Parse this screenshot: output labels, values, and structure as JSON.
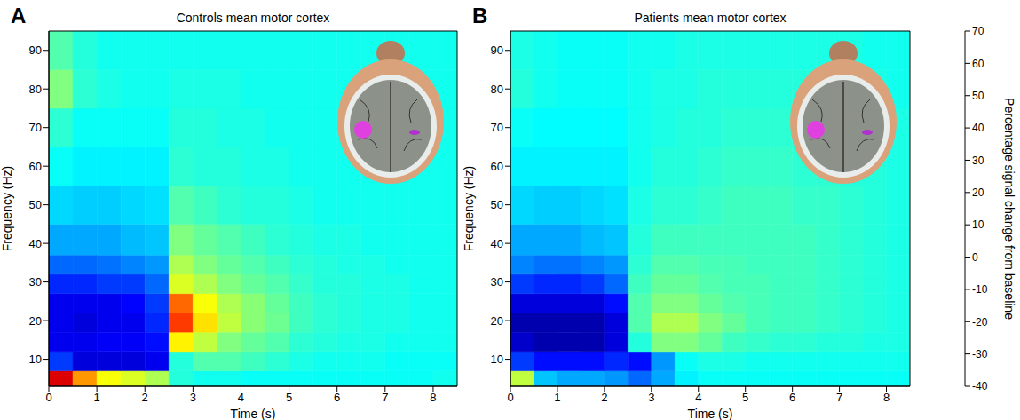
{
  "chart_data": [
    {
      "type": "heatmap",
      "panel_label": "A",
      "title": "Controls mean motor cortex",
      "x_label": "Time (s)",
      "y_label": "Frequency (Hz)",
      "xlim": [
        0,
        8.5
      ],
      "xticks": [
        0,
        1,
        2,
        3,
        4,
        5,
        6,
        7,
        8
      ],
      "ylim": [
        3,
        95
      ],
      "yticks": [
        10,
        20,
        30,
        40,
        50,
        60,
        70,
        80,
        90
      ],
      "x_bins": [
        0,
        0.5,
        1,
        1.5,
        2,
        2.5,
        3,
        3.5,
        4,
        4.5,
        5,
        5.5,
        6,
        6.5,
        7,
        7.5,
        8,
        8.5
      ],
      "y_bins": [
        3,
        7,
        12,
        17,
        22,
        27,
        32,
        37,
        45,
        55,
        65,
        75,
        85,
        95
      ],
      "cells": [
        [
          60,
          40,
          28,
          25,
          20,
          5,
          3,
          3,
          2,
          2,
          2,
          2,
          2,
          2,
          2,
          2,
          3
        ],
        [
          -20,
          -30,
          -30,
          -30,
          -28,
          5,
          10,
          10,
          8,
          6,
          4,
          3,
          3,
          3,
          2,
          2,
          2
        ],
        [
          -28,
          -28,
          -27,
          -27,
          -25,
          30,
          22,
          15,
          12,
          10,
          6,
          5,
          4,
          4,
          3,
          3,
          3
        ],
        [
          -28,
          -30,
          -28,
          -28,
          -22,
          50,
          32,
          22,
          16,
          13,
          8,
          6,
          5,
          4,
          4,
          3,
          3
        ],
        [
          -28,
          -28,
          -28,
          -26,
          -20,
          45,
          28,
          20,
          16,
          12,
          8,
          6,
          5,
          4,
          4,
          3,
          3
        ],
        [
          -22,
          -22,
          -20,
          -20,
          -15,
          25,
          20,
          15,
          12,
          10,
          7,
          5,
          5,
          4,
          4,
          3,
          3
        ],
        [
          -15,
          -15,
          -14,
          -12,
          -10,
          20,
          15,
          12,
          10,
          8,
          6,
          5,
          4,
          4,
          3,
          3,
          3
        ],
        [
          -8,
          -8,
          -8,
          -6,
          -5,
          15,
          12,
          10,
          8,
          6,
          5,
          4,
          4,
          3,
          3,
          3,
          3
        ],
        [
          -3,
          -4,
          -4,
          -3,
          -2,
          10,
          8,
          6,
          5,
          5,
          4,
          3,
          3,
          3,
          3,
          3,
          3
        ],
        [
          2,
          0,
          0,
          0,
          0,
          6,
          5,
          5,
          4,
          4,
          3,
          3,
          3,
          3,
          3,
          3,
          3
        ],
        [
          6,
          2,
          2,
          2,
          2,
          5,
          5,
          4,
          4,
          3,
          3,
          3,
          3,
          3,
          3,
          3,
          3
        ],
        [
          15,
          6,
          4,
          3,
          3,
          4,
          4,
          4,
          3,
          3,
          3,
          3,
          3,
          3,
          3,
          3,
          3
        ],
        [
          10,
          5,
          3,
          3,
          3,
          3,
          3,
          3,
          3,
          3,
          3,
          3,
          3,
          3,
          3,
          3,
          3
        ]
      ]
    },
    {
      "type": "heatmap",
      "panel_label": "B",
      "title": "Patients mean motor cortex",
      "x_label": "Time (s)",
      "y_label": "Frequency (Hz)",
      "xlim": [
        0,
        8.5
      ],
      "xticks": [
        0,
        1,
        2,
        3,
        4,
        5,
        6,
        7,
        8
      ],
      "ylim": [
        3,
        95
      ],
      "yticks": [
        10,
        20,
        30,
        40,
        50,
        60,
        70,
        80,
        90
      ],
      "x_bins": [
        0,
        0.5,
        1,
        1.5,
        2,
        2.5,
        3,
        3.5,
        4,
        4.5,
        5,
        5.5,
        6,
        6.5,
        7,
        7.5,
        8,
        8.5
      ],
      "y_bins": [
        3,
        7,
        12,
        17,
        22,
        27,
        32,
        37,
        45,
        55,
        65,
        75,
        85,
        95
      ],
      "cells": [
        [
          22,
          -5,
          -8,
          -8,
          -10,
          -15,
          -8,
          0,
          2,
          2,
          2,
          2,
          2,
          2,
          2,
          2,
          2
        ],
        [
          -20,
          -25,
          -25,
          -25,
          -22,
          -25,
          -10,
          2,
          4,
          4,
          3,
          3,
          3,
          3,
          3,
          3,
          3
        ],
        [
          -32,
          -35,
          -35,
          -35,
          -30,
          5,
          15,
          15,
          12,
          8,
          7,
          6,
          6,
          5,
          5,
          4,
          4
        ],
        [
          -35,
          -35,
          -35,
          -35,
          -30,
          10,
          20,
          20,
          15,
          12,
          9,
          8,
          8,
          7,
          6,
          5,
          4
        ],
        [
          -30,
          -30,
          -30,
          -30,
          -25,
          10,
          15,
          15,
          12,
          10,
          9,
          8,
          8,
          7,
          6,
          5,
          4
        ],
        [
          -20,
          -22,
          -22,
          -20,
          -15,
          8,
          12,
          12,
          10,
          9,
          9,
          8,
          8,
          7,
          6,
          5,
          4
        ],
        [
          -12,
          -14,
          -14,
          -12,
          -10,
          6,
          10,
          10,
          9,
          9,
          8,
          8,
          8,
          7,
          6,
          5,
          4
        ],
        [
          -8,
          -8,
          -8,
          -6,
          -5,
          5,
          8,
          8,
          8,
          8,
          8,
          8,
          8,
          7,
          6,
          5,
          4
        ],
        [
          -3,
          -4,
          -4,
          -3,
          -2,
          4,
          6,
          6,
          7,
          8,
          8,
          8,
          7,
          7,
          6,
          5,
          4
        ],
        [
          0,
          0,
          0,
          0,
          0,
          3,
          5,
          5,
          6,
          7,
          7,
          7,
          6,
          6,
          5,
          5,
          4
        ],
        [
          2,
          1,
          1,
          1,
          1,
          3,
          4,
          5,
          5,
          6,
          6,
          6,
          5,
          5,
          5,
          4,
          4
        ],
        [
          5,
          3,
          2,
          2,
          2,
          3,
          4,
          4,
          5,
          5,
          5,
          5,
          5,
          4,
          4,
          4,
          3
        ],
        [
          4,
          3,
          2,
          2,
          2,
          3,
          3,
          4,
          4,
          4,
          4,
          4,
          4,
          4,
          4,
          3,
          3
        ]
      ]
    }
  ],
  "colorbar": {
    "label": "Percentage signal change from baseline",
    "range": [
      -40,
      70
    ],
    "ticks": [
      -40,
      -30,
      -20,
      -10,
      0,
      10,
      20,
      30,
      40,
      50,
      60,
      70
    ]
  }
}
